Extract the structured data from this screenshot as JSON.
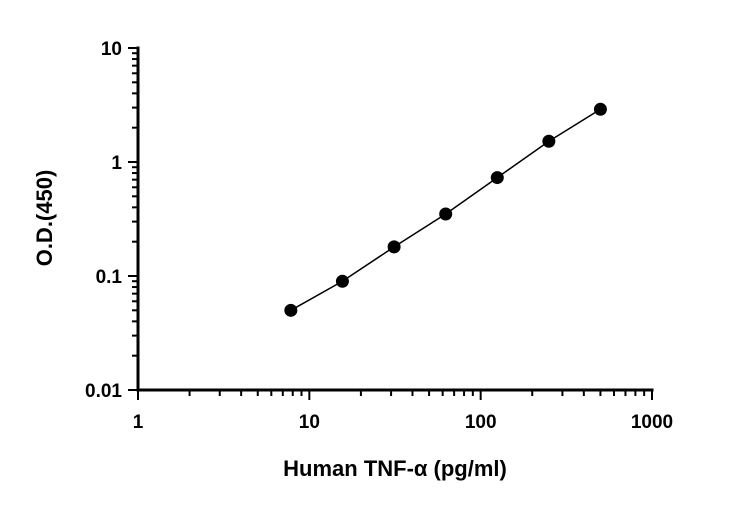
{
  "chart_data": {
    "type": "scatter",
    "title": "",
    "xlabel": "Human TNF-α (pg/ml)",
    "ylabel": "O.D.(450)",
    "xscale": "log",
    "yscale": "log",
    "xlim": [
      1,
      1000
    ],
    "ylim": [
      0.01,
      10
    ],
    "x_ticks": [
      "1",
      "10",
      "100",
      "1000"
    ],
    "y_ticks": [
      "0.01",
      "0.1",
      "1",
      "10"
    ],
    "grid": false,
    "legend": "none",
    "fit_line": true,
    "series": [
      {
        "marker": "filled-circle",
        "color": "#000000",
        "points": [
          {
            "x": 7.8,
            "y": 0.05
          },
          {
            "x": 15.6,
            "y": 0.09
          },
          {
            "x": 31.25,
            "y": 0.18
          },
          {
            "x": 62.5,
            "y": 0.35
          },
          {
            "x": 125,
            "y": 0.73
          },
          {
            "x": 250,
            "y": 1.52
          },
          {
            "x": 500,
            "y": 2.9
          }
        ]
      }
    ]
  }
}
